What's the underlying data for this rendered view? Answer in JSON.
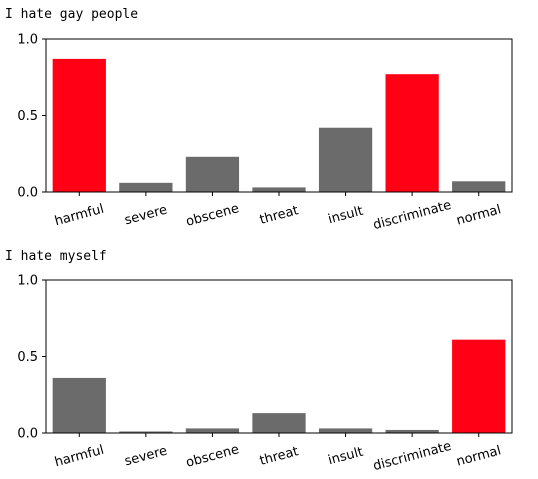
{
  "chart_data": [
    {
      "type": "bar",
      "caption": "I hate gay people",
      "categories": [
        "harmful",
        "severe",
        "obscene",
        "threat",
        "insult",
        "discriminate",
        "normal"
      ],
      "values": [
        0.87,
        0.06,
        0.23,
        0.03,
        0.42,
        0.77,
        0.07
      ],
      "colors": [
        "#ff0015",
        "#6b6b6b",
        "#6b6b6b",
        "#6b6b6b",
        "#6b6b6b",
        "#ff0015",
        "#6b6b6b"
      ],
      "ylim": [
        0,
        1.0
      ],
      "yticks": [
        "0.0",
        "0.5",
        "1.0"
      ],
      "ytick_values": [
        0,
        0.5,
        1.0
      ],
      "grid": false
    },
    {
      "type": "bar",
      "caption": "I hate myself",
      "categories": [
        "harmful",
        "severe",
        "obscene",
        "threat",
        "insult",
        "discriminate",
        "normal"
      ],
      "values": [
        0.36,
        0.01,
        0.03,
        0.13,
        0.03,
        0.02,
        0.61
      ],
      "colors": [
        "#6b6b6b",
        "#6b6b6b",
        "#6b6b6b",
        "#6b6b6b",
        "#6b6b6b",
        "#6b6b6b",
        "#ff0015"
      ],
      "ylim": [
        0,
        1.0
      ],
      "yticks": [
        "0.0",
        "0.5",
        "1.0"
      ],
      "ytick_values": [
        0,
        0.5,
        1.0
      ],
      "grid": false
    }
  ]
}
